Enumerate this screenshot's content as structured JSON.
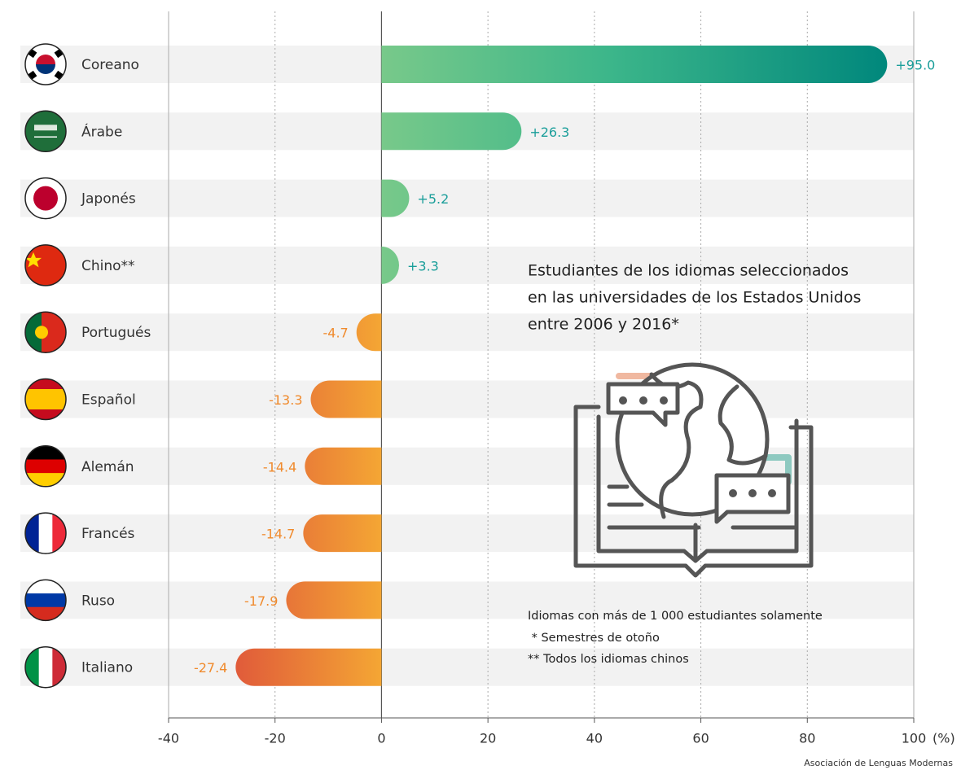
{
  "chart_data": {
    "type": "bar",
    "orientation": "horizontal",
    "title_lines": [
      "Estudiantes de los idiomas seleccionados",
      "en las universidades de los Estados Unidos",
      "entre 2006 y 2016*"
    ],
    "notes": [
      "Idiomas con más de 1 000 estudiantes solamente",
      " * Semestres de otoño",
      "** Todos los idiomas chinos"
    ],
    "source": "Asociación de Lenguas Modernas",
    "categories": [
      "Coreano",
      "Árabe",
      "Japonés",
      "Chino**",
      "Portugués",
      "Español",
      "Alemán",
      "Francés",
      "Ruso",
      "Italiano"
    ],
    "values": [
      95.0,
      26.3,
      5.2,
      3.3,
      -4.7,
      -13.3,
      -14.4,
      -14.7,
      -17.9,
      -27.4
    ],
    "value_labels": [
      "+95.0",
      "+26.3",
      "+5.2",
      "+3.3",
      "-4.7",
      "-13.3",
      "-14.4",
      "-14.7",
      "-17.9",
      "-27.4"
    ],
    "xlim": [
      -40,
      100
    ],
    "xticks": [
      -40,
      -20,
      0,
      20,
      40,
      60,
      80,
      100
    ],
    "x_label": "(%)",
    "positive_color": "#00877c",
    "negative_color": "#e05a3a",
    "positive_label_color": "#1a9e9a",
    "negative_label_color": "#f08a2c"
  }
}
